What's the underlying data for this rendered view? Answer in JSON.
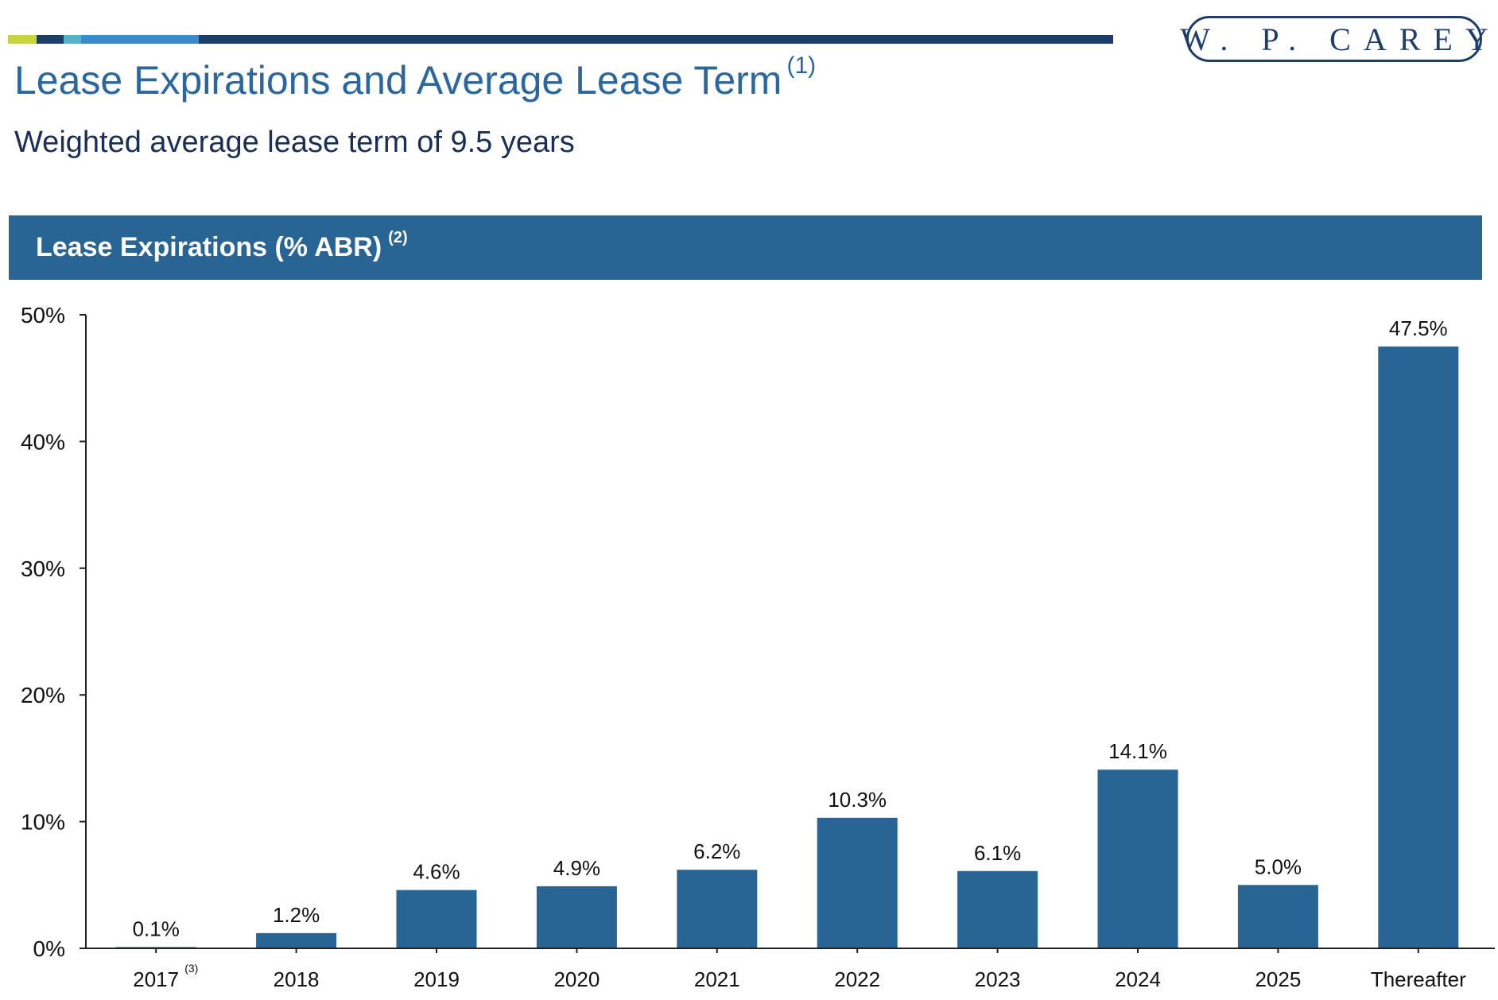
{
  "brand": {
    "logo_text": "W. P. CAREY",
    "colors": {
      "primary": "#286595",
      "title": "#2a66a0",
      "navy": "#1d3d6b",
      "strip": [
        "#c7d63c",
        "#1d3d6b",
        "#56b2c8",
        "#3b8bcb",
        "#1d3d6b"
      ]
    }
  },
  "header": {
    "title": "Lease Expirations and Average Lease Term",
    "title_note": "(1)",
    "subtitle": "Weighted average lease term of 9.5 years"
  },
  "section": {
    "title": "Lease Expirations (% ABR)",
    "note": "(2)"
  },
  "chart_data": {
    "type": "bar",
    "categories": [
      "2017",
      "2018",
      "2019",
      "2020",
      "2021",
      "2022",
      "2023",
      "2024",
      "2025",
      "Thereafter"
    ],
    "category_notes": {
      "2017": "(3)"
    },
    "values": [
      0.1,
      1.2,
      4.6,
      4.9,
      6.2,
      10.3,
      6.1,
      14.1,
      5.0,
      47.5
    ],
    "data_labels": [
      "0.1%",
      "1.2%",
      "4.6%",
      "4.9%",
      "6.2%",
      "10.3%",
      "6.1%",
      "14.1%",
      "5.0%",
      "47.5%"
    ],
    "yticks": [
      0,
      10,
      20,
      30,
      40,
      50
    ],
    "ytick_labels": [
      "0%",
      "10%",
      "20%",
      "30%",
      "40%",
      "50%"
    ],
    "ylim": [
      0,
      50
    ],
    "grid": false,
    "bar_color": "#286595",
    "title": "Lease Expirations (% ABR)",
    "xlabel": "",
    "ylabel": ""
  }
}
